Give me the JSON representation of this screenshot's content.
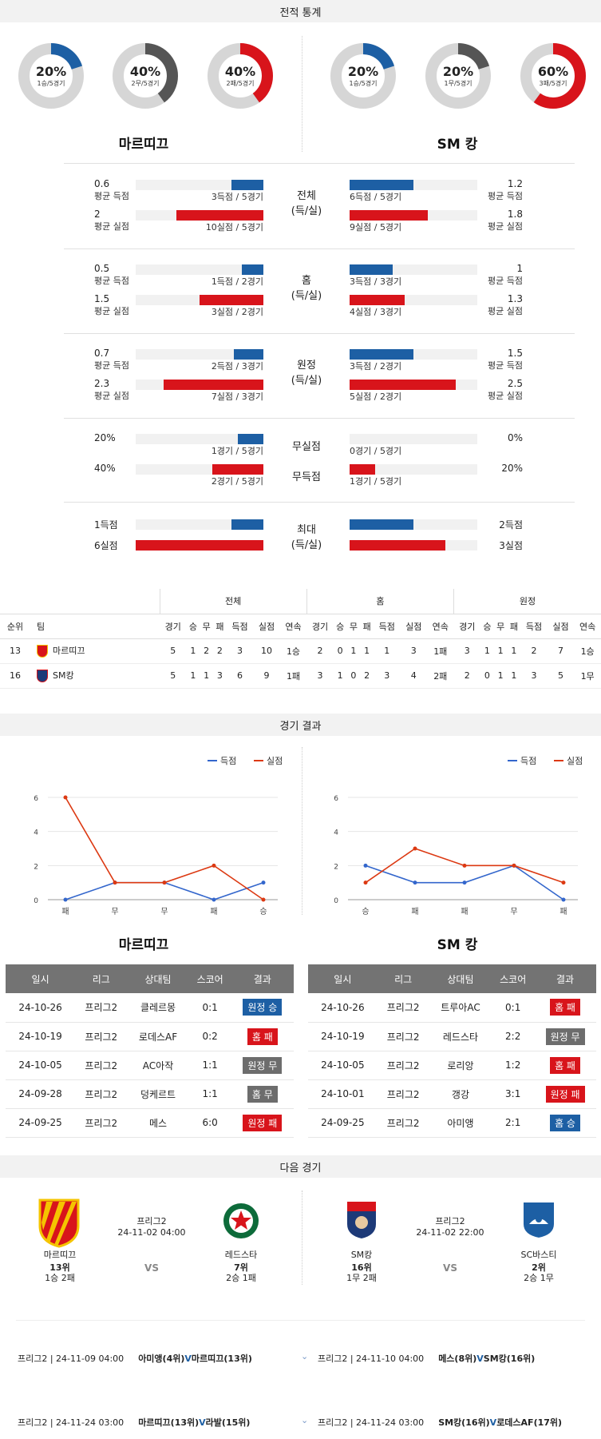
{
  "sections": {
    "stats": "전적 통계",
    "results": "경기 결과",
    "next": "다음 경기"
  },
  "donuts": [
    {
      "pct": "20%",
      "sub": "1승/5경기",
      "frac": 0.2,
      "color": "#1d5fa4"
    },
    {
      "pct": "40%",
      "sub": "2무/5경기",
      "frac": 0.4,
      "color": "#555555"
    },
    {
      "pct": "40%",
      "sub": "2패/5경기",
      "frac": 0.4,
      "color": "#d8141b"
    },
    {
      "pct": "20%",
      "sub": "1승/5경기",
      "frac": 0.2,
      "color": "#1d5fa4"
    },
    {
      "pct": "20%",
      "sub": "1무/5경기",
      "frac": 0.2,
      "color": "#555555"
    },
    {
      "pct": "60%",
      "sub": "3패/5경기",
      "frac": 0.6,
      "color": "#d8141b"
    }
  ],
  "teams": {
    "home": "마르띠끄",
    "away": "SM 캉"
  },
  "stat_groups": [
    {
      "label1": "전체",
      "label2": "(득/실)",
      "rows": [
        {
          "l_val": "0.6",
          "l_lbl": "평균 득점",
          "l_txt": "3득점 / 5경기",
          "l_frac": 0.25,
          "r_val": "1.2",
          "r_lbl": "평균 득점",
          "r_txt": "6득점 / 5경기",
          "r_frac": 0.5,
          "kind": "blue"
        },
        {
          "l_val": "2",
          "l_lbl": "평균 실점",
          "l_txt": "10실점 / 5경기",
          "l_frac": 0.68,
          "r_val": "1.8",
          "r_lbl": "평균 실점",
          "r_txt": "9실점 / 5경기",
          "r_frac": 0.61,
          "kind": "red"
        }
      ]
    },
    {
      "label1": "홈",
      "label2": "(득/실)",
      "rows": [
        {
          "l_val": "0.5",
          "l_lbl": "평균 득점",
          "l_txt": "1득점 / 2경기",
          "l_frac": 0.17,
          "r_val": "1",
          "r_lbl": "평균 득점",
          "r_txt": "3득점 / 3경기",
          "r_frac": 0.34,
          "kind": "blue"
        },
        {
          "l_val": "1.5",
          "l_lbl": "평균 실점",
          "l_txt": "3실점 / 2경기",
          "l_frac": 0.5,
          "r_val": "1.3",
          "r_lbl": "평균 실점",
          "r_txt": "4실점 / 3경기",
          "r_frac": 0.43,
          "kind": "red"
        }
      ]
    },
    {
      "label1": "원정",
      "label2": "(득/실)",
      "rows": [
        {
          "l_val": "0.7",
          "l_lbl": "평균 득점",
          "l_txt": "2득점 / 3경기",
          "l_frac": 0.23,
          "r_val": "1.5",
          "r_lbl": "평균 득점",
          "r_txt": "3득점 / 2경기",
          "r_frac": 0.5,
          "kind": "blue"
        },
        {
          "l_val": "2.3",
          "l_lbl": "평균 실점",
          "l_txt": "7실점 / 3경기",
          "l_frac": 0.78,
          "r_val": "2.5",
          "r_lbl": "평균 실점",
          "r_txt": "5실점 / 2경기",
          "r_frac": 0.83,
          "kind": "red"
        }
      ]
    }
  ],
  "clean": [
    {
      "l_val": "20%",
      "l_txt": "1경기 / 5경기",
      "l_frac": 0.2,
      "center": "무실점",
      "r_val": "0%",
      "r_txt": "0경기 / 5경기",
      "r_frac": 0,
      "kind": "blue"
    },
    {
      "l_val": "40%",
      "l_txt": "2경기 / 5경기",
      "l_frac": 0.4,
      "center": "무득점",
      "r_val": "20%",
      "r_txt": "1경기 / 5경기",
      "r_frac": 0.2,
      "kind": "red"
    }
  ],
  "max": {
    "label1": "최대",
    "label2": "(득/실)",
    "rows": [
      {
        "l_val": "1득점",
        "l_frac": 0.25,
        "r_val": "2득점",
        "r_frac": 0.5,
        "kind": "blue"
      },
      {
        "l_val": "6실점",
        "l_frac": 1,
        "r_val": "3실점",
        "r_frac": 0.75,
        "kind": "red"
      }
    ]
  },
  "standings": {
    "groups": [
      "전체",
      "홈",
      "원정"
    ],
    "head": [
      "순위",
      "팀",
      "경기",
      "승",
      "무",
      "패",
      "득점",
      "실점",
      "연속",
      "경기",
      "승",
      "무",
      "패",
      "득점",
      "실점",
      "연속",
      "경기",
      "승",
      "무",
      "패",
      "득점",
      "실점",
      "연속"
    ],
    "rows": [
      {
        "rank": "13",
        "team": "마르띠끄",
        "cells": [
          "5",
          "1",
          "2",
          "2",
          "3",
          "10",
          "1승",
          "2",
          "0",
          "1",
          "1",
          "1",
          "3",
          "1패",
          "3",
          "1",
          "1",
          "1",
          "2",
          "7",
          "1승"
        ]
      },
      {
        "rank": "16",
        "team": "SM캉",
        "cells": [
          "5",
          "1",
          "1",
          "3",
          "6",
          "9",
          "1패",
          "3",
          "1",
          "0",
          "2",
          "3",
          "4",
          "2패",
          "2",
          "0",
          "1",
          "1",
          "3",
          "5",
          "1무"
        ]
      }
    ]
  },
  "chart_data": [
    {
      "type": "line",
      "categories": [
        "패",
        "무",
        "무",
        "패",
        "승"
      ],
      "series": [
        {
          "name": "득점",
          "values": [
            0,
            1,
            1,
            0,
            1
          ],
          "color": "#3366cc"
        },
        {
          "name": "실점",
          "values": [
            6,
            1,
            1,
            2,
            0
          ],
          "color": "#dc3912"
        }
      ],
      "ylim": [
        0,
        6
      ],
      "yticks": [
        "0",
        "2",
        "4",
        "6"
      ],
      "legend": "top-right"
    },
    {
      "type": "line",
      "categories": [
        "승",
        "패",
        "패",
        "무",
        "패"
      ],
      "series": [
        {
          "name": "득점",
          "values": [
            2,
            1,
            1,
            2,
            0
          ],
          "color": "#3366cc"
        },
        {
          "name": "실점",
          "values": [
            1,
            3,
            2,
            2,
            1
          ],
          "color": "#dc3912"
        }
      ],
      "ylim": [
        0,
        6
      ],
      "yticks": [
        "0",
        "2",
        "4",
        "6"
      ],
      "legend": "top-right"
    }
  ],
  "results_tables": [
    {
      "team": "마르띠끄",
      "head": [
        "일시",
        "리그",
        "상대팀",
        "스코어",
        "결과"
      ],
      "rows": [
        {
          "date": "24-10-26",
          "league": "프리그2",
          "opp": "클레르몽",
          "score": "0:1",
          "result": "원정 승",
          "color": "blue"
        },
        {
          "date": "24-10-19",
          "league": "프리그2",
          "opp": "로데스AF",
          "score": "0:2",
          "result": "홈 패",
          "color": "red"
        },
        {
          "date": "24-10-05",
          "league": "프리그2",
          "opp": "AC아작",
          "score": "1:1",
          "result": "원정 무",
          "color": "gray"
        },
        {
          "date": "24-09-28",
          "league": "프리그2",
          "opp": "덩케르트",
          "score": "1:1",
          "result": "홈 무",
          "color": "gray"
        },
        {
          "date": "24-09-25",
          "league": "프리그2",
          "opp": "메스",
          "score": "6:0",
          "result": "원정 패",
          "color": "red"
        }
      ]
    },
    {
      "team": "SM 캉",
      "head": [
        "일시",
        "리그",
        "상대팀",
        "스코어",
        "결과"
      ],
      "rows": [
        {
          "date": "24-10-26",
          "league": "프리그2",
          "opp": "트루아AC",
          "score": "0:1",
          "result": "홈 패",
          "color": "red"
        },
        {
          "date": "24-10-19",
          "league": "프리그2",
          "opp": "레드스타",
          "score": "2:2",
          "result": "원정 무",
          "color": "gray"
        },
        {
          "date": "24-10-05",
          "league": "프리그2",
          "opp": "로리앙",
          "score": "1:2",
          "result": "홈 패",
          "color": "red"
        },
        {
          "date": "24-10-01",
          "league": "프리그2",
          "opp": "갱강",
          "score": "3:1",
          "result": "원정 패",
          "color": "red"
        },
        {
          "date": "24-09-25",
          "league": "프리그2",
          "opp": "아미앵",
          "score": "2:1",
          "result": "홈 승",
          "color": "blue"
        }
      ]
    }
  ],
  "next_matches": [
    {
      "league": "프리그2",
      "datetime": "24-11-02 04:00",
      "vs": "VS",
      "home": {
        "name": "마르띠끄",
        "rank": "13위",
        "record": "1승 2패"
      },
      "away": {
        "name": "레드스타",
        "rank": "7위",
        "record": "2승 1패"
      }
    },
    {
      "league": "프리그2",
      "datetime": "24-11-02 22:00",
      "vs": "VS",
      "home": {
        "name": "SM캉",
        "rank": "16위",
        "record": "1무 2패"
      },
      "away": {
        "name": "SC바스티",
        "rank": "2위",
        "record": "2승 1무"
      }
    }
  ],
  "future": [
    {
      "left": {
        "info": "프리그2 | 24-11-09 04:00",
        "home": "아미앵(4위)",
        "v": "V",
        "away": "마르띠끄(13위)"
      },
      "right": {
        "info": "프리그2 | 24-11-10 04:00",
        "home": "메스(8위)",
        "v": "V",
        "away": "SM캉(16위)"
      }
    },
    {
      "left": {
        "info": "프리그2 | 24-11-24 03:00",
        "home": "마르띠끄(13위)",
        "v": "V",
        "away": "라발(15위)"
      },
      "right": {
        "info": "프리그2 | 24-11-24 03:00",
        "home": "SM캉(16위)",
        "v": "V",
        "away": "로데스AF(17위)"
      }
    }
  ]
}
